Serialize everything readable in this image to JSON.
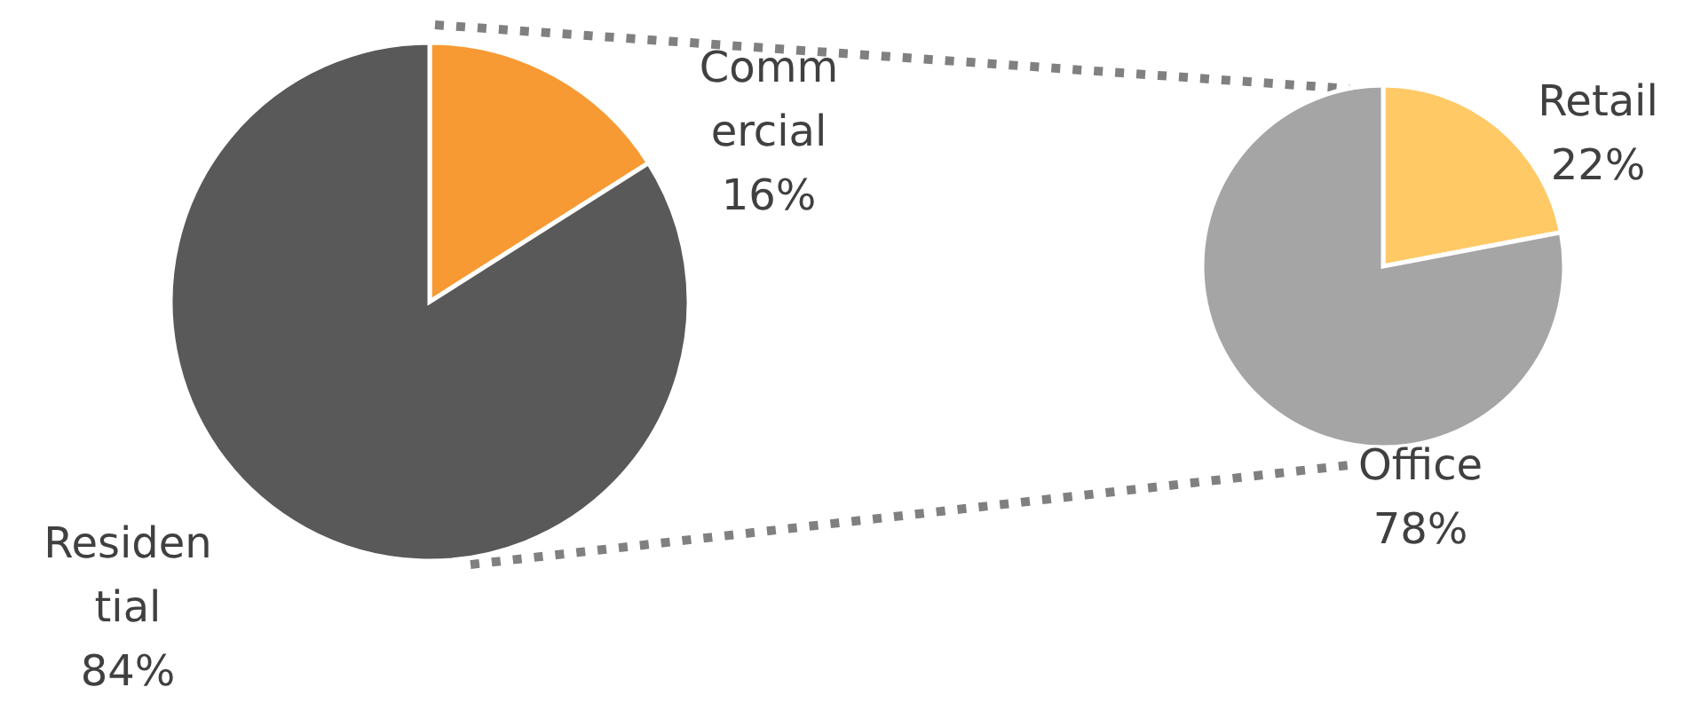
{
  "chart_data": [
    {
      "type": "pie",
      "categories": [
        "Commercial",
        "Residential"
      ],
      "values": [
        16,
        84
      ],
      "colors": [
        "#f79a33",
        "#595959"
      ],
      "value_labels": [
        "16%",
        "84%"
      ]
    },
    {
      "type": "pie",
      "categories": [
        "Retail",
        "Office"
      ],
      "values": [
        22,
        78
      ],
      "colors": [
        "#ffc966",
        "#a5a5a5"
      ],
      "value_labels": [
        "22%",
        "78%"
      ]
    }
  ]
}
